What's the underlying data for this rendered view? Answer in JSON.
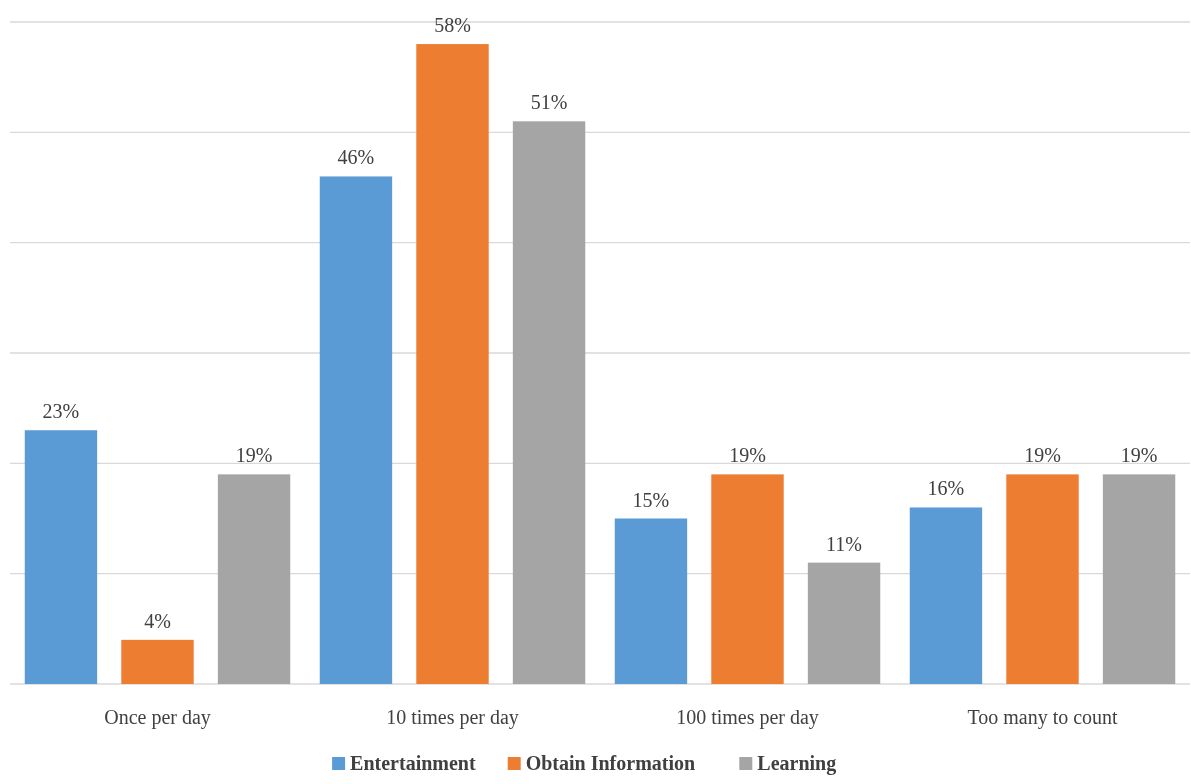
{
  "chart_data": {
    "type": "bar",
    "categories": [
      "Once per day",
      "10 times per day",
      "100 times per day",
      "Too many to count"
    ],
    "series": [
      {
        "name": "Entertainment",
        "color": "#5b9bd5",
        "values": [
          23,
          46,
          15,
          16
        ],
        "value_labels": [
          "23%",
          "46%",
          "15%",
          "16%"
        ]
      },
      {
        "name": "Obtain Information",
        "color": "#ed7d31",
        "values": [
          4,
          58,
          19,
          19
        ],
        "value_labels": [
          "4%",
          "58%",
          "19%",
          "19%"
        ]
      },
      {
        "name": "Learning",
        "color": "#a5a5a5",
        "values": [
          19,
          51,
          11,
          19
        ],
        "value_labels": [
          "19%",
          "51%",
          "11%",
          "19%"
        ]
      }
    ],
    "ylim": [
      0,
      60
    ],
    "yticks": [
      {
        "value": 0,
        "label": null
      },
      {
        "value": 10,
        "label": null
      },
      {
        "value": 20,
        "label": null
      },
      {
        "value": 30,
        "label": null
      },
      {
        "value": 40,
        "label": null
      },
      {
        "value": 50,
        "label": null
      },
      {
        "value": 60,
        "label": null
      }
    ],
    "tick_labels": "x",
    "grid": "y",
    "legend": "bottom"
  }
}
